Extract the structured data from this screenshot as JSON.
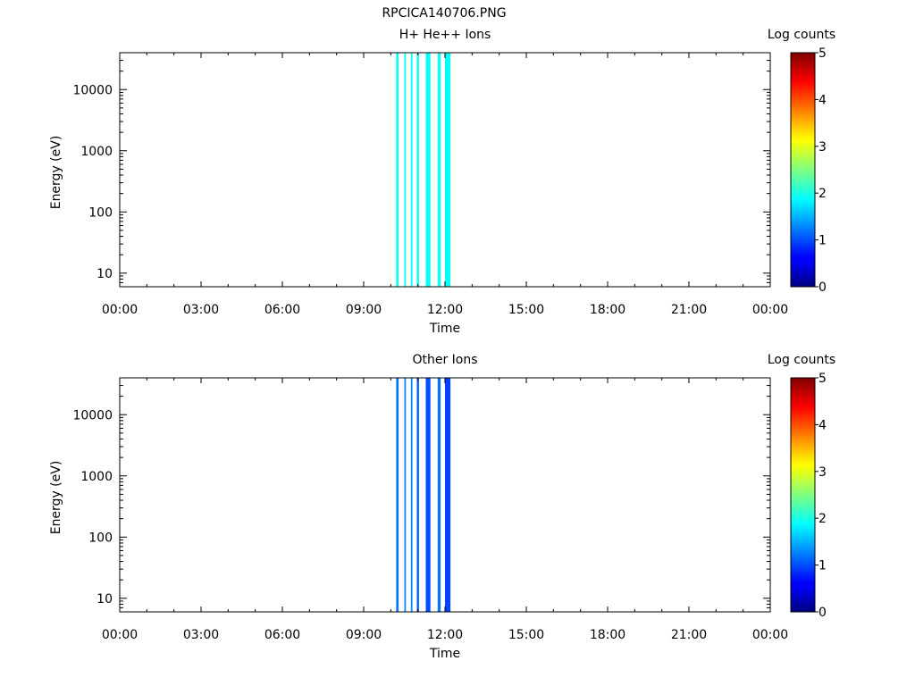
{
  "figure": {
    "title": "RPCICA140706.PNG"
  },
  "colorbar": {
    "label": "Log counts",
    "ticks": [
      "0",
      "1",
      "2",
      "3",
      "4",
      "5"
    ],
    "range": [
      0,
      5
    ],
    "colormap": "jet"
  },
  "chart_data": [
    {
      "type": "heatmap",
      "title": "H+ He++ Ions",
      "xlabel": "Time",
      "ylabel": "Energy (eV)",
      "x_ticks": [
        "00:00",
        "03:00",
        "06:00",
        "09:00",
        "12:00",
        "15:00",
        "18:00",
        "21:00",
        "00:00"
      ],
      "xlim_hours": [
        0,
        24
      ],
      "y_scale": "log",
      "ylim": [
        6,
        40000
      ],
      "y_ticks": [
        "10",
        "100",
        "1000",
        "10000"
      ],
      "colorbar_label": "Log counts",
      "color_range": [
        0,
        5
      ],
      "bursts": [
        {
          "start_hour": 10.2,
          "end_hour": 10.29,
          "log_counts": 1.9
        },
        {
          "start_hour": 10.5,
          "end_hour": 10.56,
          "log_counts": 1.9
        },
        {
          "start_hour": 10.74,
          "end_hour": 10.8,
          "log_counts": 1.9
        },
        {
          "start_hour": 10.96,
          "end_hour": 11.04,
          "log_counts": 1.9
        },
        {
          "start_hour": 11.29,
          "end_hour": 11.46,
          "log_counts": 1.9
        },
        {
          "start_hour": 11.73,
          "end_hour": 11.84,
          "log_counts": 1.9
        },
        {
          "start_hour": 12.0,
          "end_hour": 12.2,
          "log_counts": 1.9
        }
      ]
    },
    {
      "type": "heatmap",
      "title": "Other Ions",
      "xlabel": "Time",
      "ylabel": "Energy (eV)",
      "x_ticks": [
        "00:00",
        "03:00",
        "06:00",
        "09:00",
        "12:00",
        "15:00",
        "18:00",
        "21:00",
        "00:00"
      ],
      "xlim_hours": [
        0,
        24
      ],
      "y_scale": "log",
      "ylim": [
        6,
        40000
      ],
      "y_ticks": [
        "10",
        "100",
        "1000",
        "10000"
      ],
      "colorbar_label": "Log counts",
      "color_range": [
        0,
        5
      ],
      "bursts": [
        {
          "start_hour": 10.2,
          "end_hour": 10.29,
          "log_counts": 1.2
        },
        {
          "start_hour": 10.5,
          "end_hour": 10.56,
          "log_counts": 1.3
        },
        {
          "start_hour": 10.74,
          "end_hour": 10.8,
          "log_counts": 1.3
        },
        {
          "start_hour": 10.96,
          "end_hour": 11.04,
          "log_counts": 1.1
        },
        {
          "start_hour": 11.29,
          "end_hour": 11.46,
          "log_counts": 1.0
        },
        {
          "start_hour": 11.73,
          "end_hour": 11.84,
          "log_counts": 1.2
        },
        {
          "start_hour": 12.0,
          "end_hour": 12.2,
          "log_counts": 0.95
        }
      ]
    }
  ]
}
